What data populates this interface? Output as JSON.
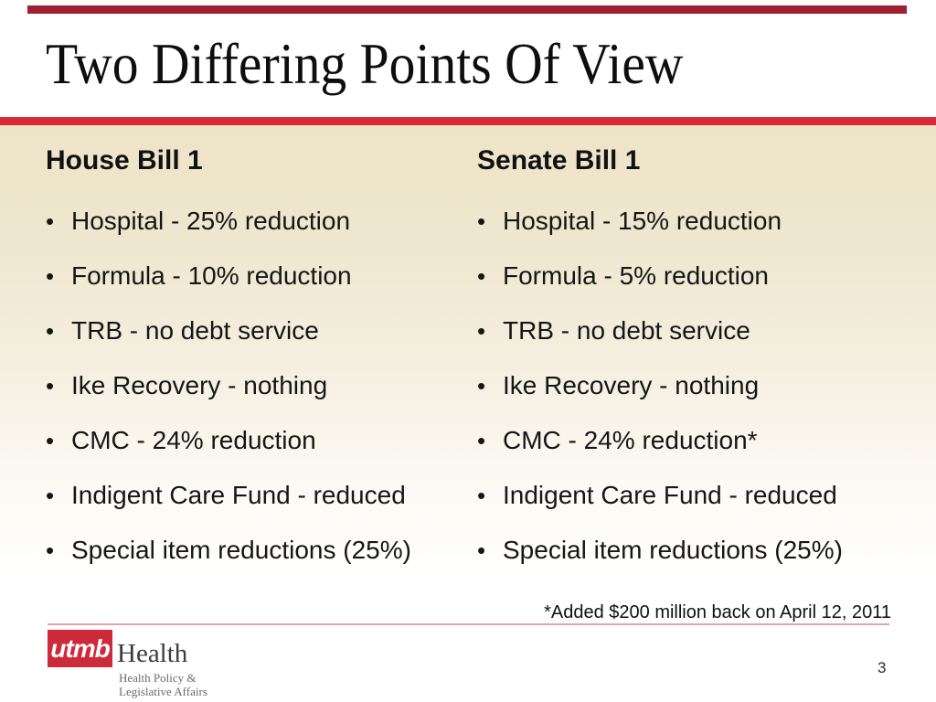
{
  "slide": {
    "title": "Two Differing Points Of View",
    "footnote": "*Added $200 million back on April 12, 2011",
    "page_number": "3"
  },
  "columns": [
    {
      "header": "House Bill 1",
      "bullets": [
        "Hospital - 25% reduction",
        "Formula - 10% reduction",
        "TRB - no debt service",
        "Ike Recovery - nothing",
        "CMC - 24% reduction",
        "Indigent Care Fund - reduced",
        "Special item reductions (25%)"
      ]
    },
    {
      "header": "Senate Bill 1",
      "bullets": [
        "Hospital - 15% reduction",
        "Formula - 5% reduction",
        "TRB - no debt service",
        "Ike Recovery - nothing",
        "CMC - 24% reduction*",
        "Indigent Care Fund - reduced",
        "Special item reductions (25%)"
      ]
    }
  ],
  "footer": {
    "logo_mark": "utmb",
    "logo_name": "Health",
    "logo_dept_line1": "Health Policy &",
    "logo_dept_line2": "Legislative Affairs"
  },
  "colors": {
    "accent_red": "#D8293A",
    "top_bar_red": "#A02031",
    "logo_red": "#CF2A3A",
    "footer_rule_pink": "#E2A4AC",
    "body_beige": "#EDE4C8"
  }
}
